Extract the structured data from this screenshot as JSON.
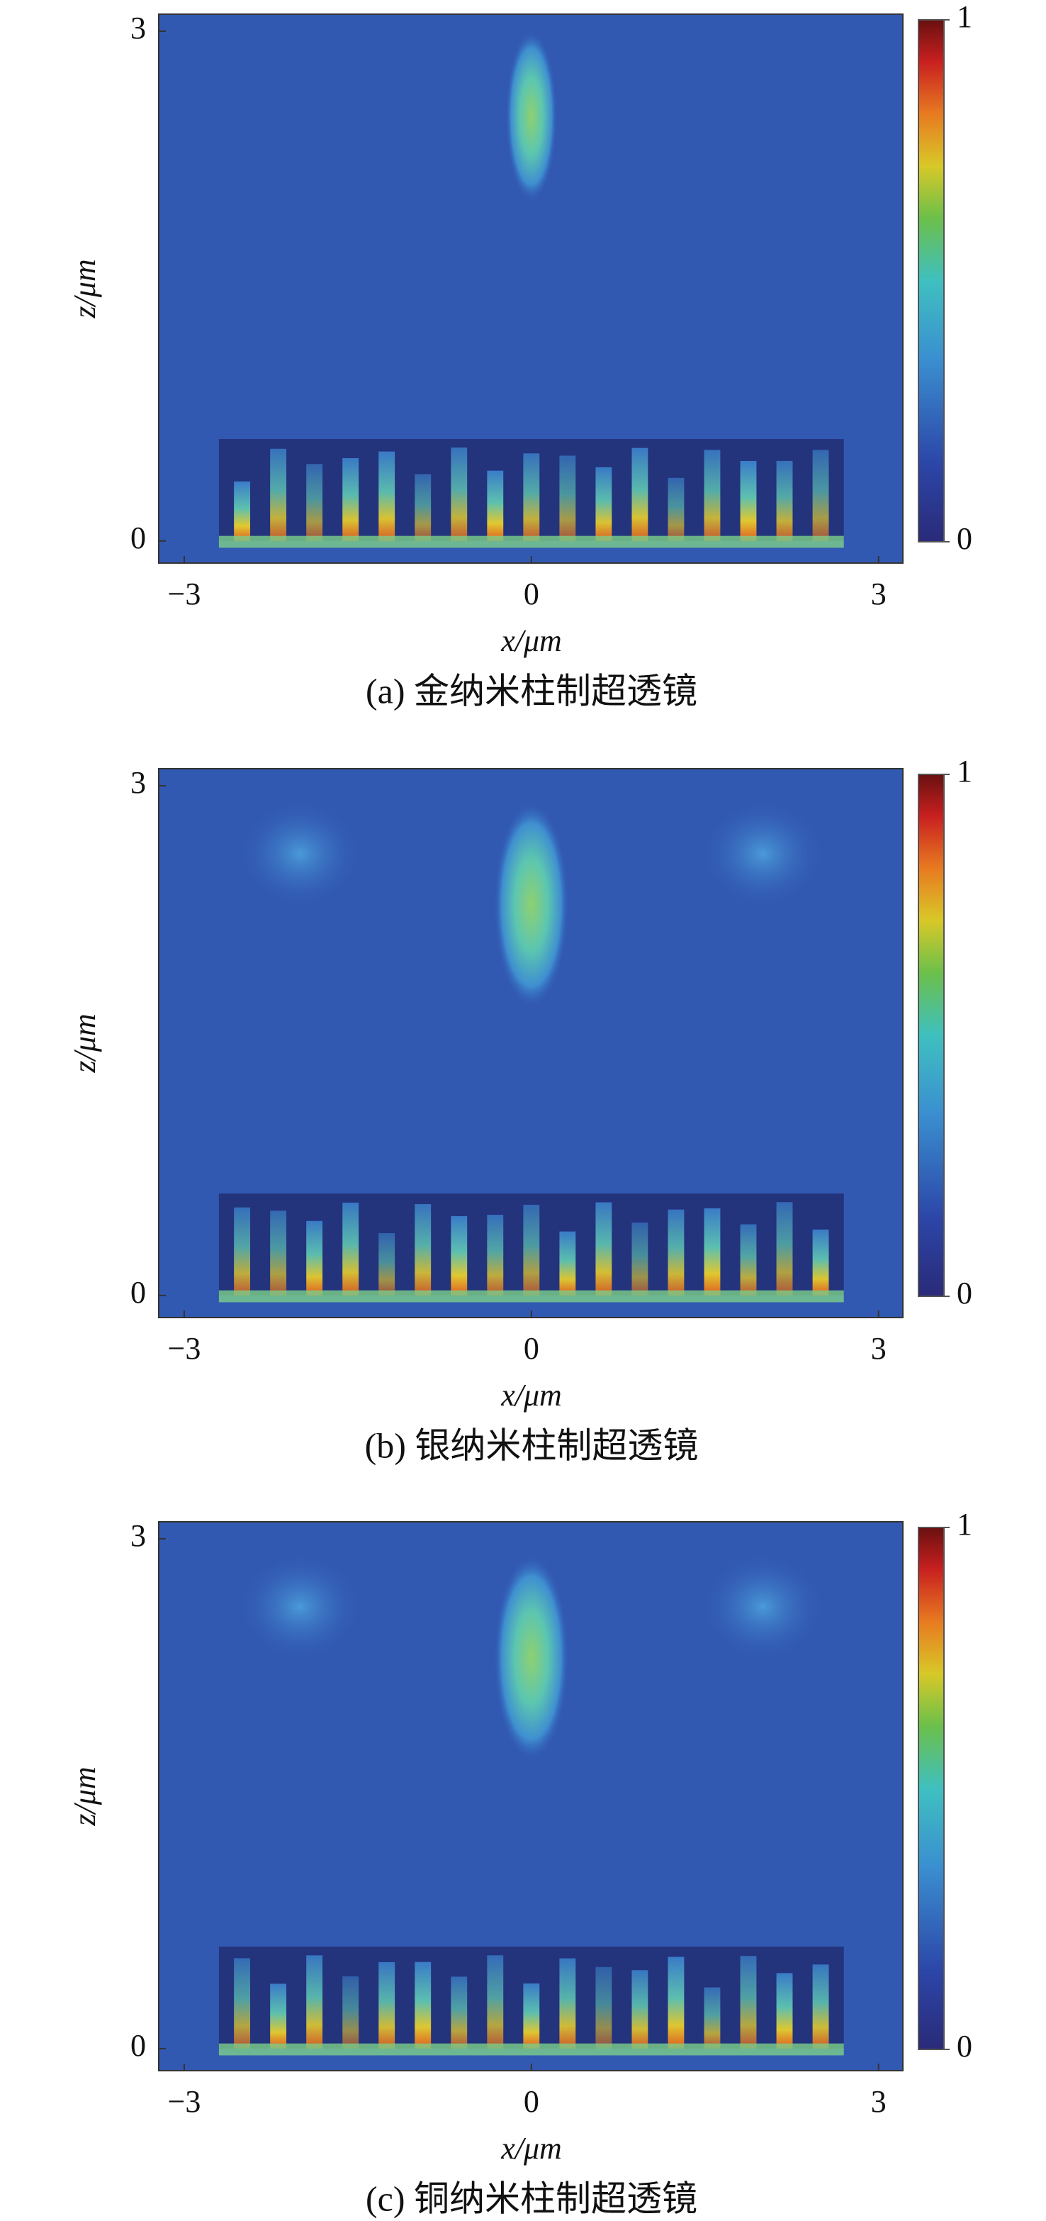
{
  "chart_data": [
    {
      "type": "heatmap",
      "caption": "(a) 金纳米柱制超透镜",
      "x_label": "x/μm",
      "y_label": "z/μm",
      "xlim": [
        -3.22,
        3.21
      ],
      "xticks": [
        {
          "value": -3,
          "label": "−3"
        },
        0,
        3
      ],
      "ylim": [
        -0.13,
        3.1
      ],
      "yticks": [
        0,
        3
      ],
      "colorbar_lim": [
        0,
        1
      ],
      "colorbar_ticks": [
        0,
        1
      ]
    },
    {
      "type": "heatmap",
      "caption": "(b) 银纳米柱制超透镜",
      "x_label": "x/μm",
      "y_label": "z/μm",
      "xlim": [
        -3.22,
        3.21
      ],
      "xticks": [
        {
          "value": -3,
          "label": "−3"
        },
        0,
        3
      ],
      "ylim": [
        -0.13,
        3.1
      ],
      "yticks": [
        0,
        3
      ],
      "colorbar_lim": [
        0,
        1
      ],
      "colorbar_ticks": [
        0,
        1
      ]
    },
    {
      "type": "heatmap",
      "caption": "(c) 铜纳米柱制超透镜",
      "x_label": "x/μm",
      "y_label": "z/μm",
      "xlim": [
        -3.22,
        3.21
      ],
      "xticks": [
        {
          "value": -3,
          "label": "−3"
        },
        0,
        3
      ],
      "ylim": [
        -0.13,
        3.1
      ],
      "yticks": [
        0,
        3
      ],
      "colorbar_lim": [
        0,
        1
      ],
      "colorbar_ticks": [
        0,
        1
      ]
    }
  ]
}
